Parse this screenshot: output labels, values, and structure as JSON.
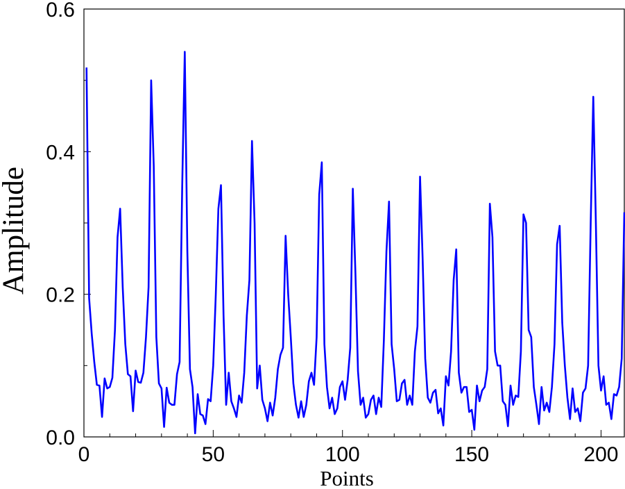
{
  "chart_data": {
    "type": "line",
    "title": "",
    "xlabel": "Points",
    "ylabel": "Amplitude",
    "xlim": [
      0,
      209
    ],
    "ylim": [
      0,
      0.6
    ],
    "x_ticks": [
      0,
      50,
      100,
      150,
      200
    ],
    "x_tick_labels": [
      "0",
      "50",
      "100",
      "150",
      "200"
    ],
    "y_ticks": [
      0,
      0.2,
      0.4,
      0.6
    ],
    "y_tick_labels": [
      "0.0",
      "0.2",
      "0.4",
      "0.6"
    ],
    "grid": false,
    "legend": "none",
    "series": [
      {
        "color": "#0000ff",
        "x_start": 1,
        "values": [
          0.518,
          0.195,
          0.145,
          0.105,
          0.073,
          0.072,
          0.028,
          0.082,
          0.068,
          0.07,
          0.083,
          0.15,
          0.28,
          0.32,
          0.21,
          0.13,
          0.088,
          0.085,
          0.036,
          0.093,
          0.077,
          0.076,
          0.09,
          0.14,
          0.21,
          0.5,
          0.38,
          0.14,
          0.075,
          0.068,
          0.014,
          0.069,
          0.048,
          0.045,
          0.045,
          0.088,
          0.105,
          0.35,
          0.54,
          0.26,
          0.095,
          0.07,
          0.005,
          0.06,
          0.032,
          0.03,
          0.018,
          0.053,
          0.05,
          0.1,
          0.2,
          0.32,
          0.353,
          0.17,
          0.045,
          0.09,
          0.05,
          0.04,
          0.028,
          0.058,
          0.048,
          0.09,
          0.17,
          0.22,
          0.415,
          0.3,
          0.068,
          0.1,
          0.052,
          0.04,
          0.022,
          0.048,
          0.03,
          0.055,
          0.095,
          0.115,
          0.125,
          0.282,
          0.2,
          0.14,
          0.075,
          0.045,
          0.027,
          0.05,
          0.028,
          0.045,
          0.078,
          0.09,
          0.073,
          0.14,
          0.34,
          0.385,
          0.13,
          0.07,
          0.04,
          0.055,
          0.032,
          0.04,
          0.07,
          0.078,
          0.052,
          0.08,
          0.125,
          0.348,
          0.23,
          0.092,
          0.045,
          0.055,
          0.027,
          0.032,
          0.052,
          0.058,
          0.032,
          0.055,
          0.042,
          0.135,
          0.26,
          0.33,
          0.13,
          0.095,
          0.05,
          0.052,
          0.075,
          0.08,
          0.045,
          0.058,
          0.045,
          0.12,
          0.155,
          0.365,
          0.25,
          0.11,
          0.055,
          0.048,
          0.062,
          0.066,
          0.033,
          0.04,
          0.016,
          0.085,
          0.072,
          0.12,
          0.22,
          0.263,
          0.09,
          0.062,
          0.07,
          0.07,
          0.035,
          0.038,
          0.01,
          0.072,
          0.05,
          0.065,
          0.07,
          0.095,
          0.327,
          0.28,
          0.12,
          0.1,
          0.1,
          0.05,
          0.045,
          0.015,
          0.072,
          0.045,
          0.058,
          0.056,
          0.12,
          0.312,
          0.3,
          0.15,
          0.14,
          0.07,
          0.045,
          0.018,
          0.07,
          0.037,
          0.048,
          0.035,
          0.07,
          0.13,
          0.27,
          0.296,
          0.16,
          0.1,
          0.055,
          0.025,
          0.068,
          0.035,
          0.04,
          0.022,
          0.062,
          0.068,
          0.1,
          0.3,
          0.477,
          0.3,
          0.1,
          0.065,
          0.085,
          0.045,
          0.048,
          0.025,
          0.06,
          0.058,
          0.07,
          0.11,
          0.315
        ]
      }
    ]
  }
}
